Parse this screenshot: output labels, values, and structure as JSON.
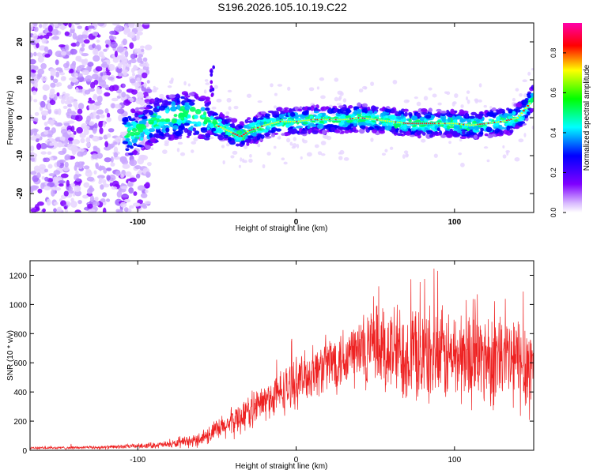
{
  "title": "S196.2026.105.10.19.C22",
  "chart_data": [
    {
      "type": "heatmap",
      "xlabel": "Height of straight line (km)",
      "ylabel": "Frequency (Hz)",
      "xlim": [
        -168,
        150
      ],
      "ylim": [
        -25,
        25
      ],
      "x_ticks": [
        -100,
        0,
        100
      ],
      "x_tick_labels": [
        "-100",
        "0",
        "100"
      ],
      "y_ticks": [
        -20,
        -10,
        0,
        10,
        20
      ],
      "y_tick_labels": [
        "-20",
        "-10",
        "0",
        "10",
        "20"
      ],
      "colorbar": {
        "label": "Normalized spectral amplitude",
        "range": [
          0,
          0.95
        ],
        "ticks": [
          0.0,
          0.2,
          0.4,
          0.6,
          0.8
        ],
        "tick_labels": [
          "0.0",
          "0.2",
          "0.4",
          "0.6",
          "0.8"
        ],
        "colormap": [
          "#ffffff",
          "#7f00ff",
          "#0000ff",
          "#00ffff",
          "#00ff00",
          "#ffff00",
          "#ff0000",
          "#ff00ff"
        ]
      },
      "ridge": {
        "x": [
          -100,
          -90,
          -80,
          -70,
          -60,
          -50,
          -45,
          -40,
          -35,
          -30,
          -20,
          -10,
          0,
          10,
          20,
          30,
          40,
          50,
          60,
          70,
          80,
          90,
          100,
          110,
          120,
          130,
          140,
          150
        ],
        "freq": [
          -4,
          -1,
          0,
          1,
          0,
          -2,
          -3,
          -4,
          -5,
          -3.5,
          -2,
          -1,
          -1,
          -0.5,
          -0.5,
          -0.5,
          0,
          -0.5,
          -1,
          -1.5,
          -1.5,
          -1.5,
          -1.5,
          -2,
          -1.5,
          -1,
          0,
          5
        ]
      }
    },
    {
      "type": "line",
      "xlabel": "Height of straight line (km)",
      "ylabel": "SNR (10 * v/v)",
      "xlim": [
        -168,
        150
      ],
      "ylim": [
        0,
        1300
      ],
      "x_ticks": [
        -100,
        0,
        100
      ],
      "x_tick_labels": [
        "-100",
        "0",
        "100"
      ],
      "y_ticks": [
        0,
        200,
        400,
        600,
        800,
        1000,
        1200
      ],
      "y_tick_labels": [
        "0",
        "200",
        "400",
        "600",
        "800",
        "1000",
        "1200"
      ],
      "color": "#ee2222",
      "envelope": {
        "x": [
          -168,
          -120,
          -100,
          -80,
          -65,
          -55,
          -45,
          -35,
          -25,
          -15,
          -5,
          5,
          15,
          25,
          35,
          45,
          60,
          80,
          100,
          120,
          140,
          150
        ],
        "mean": [
          15,
          20,
          30,
          40,
          60,
          110,
          160,
          230,
          300,
          360,
          430,
          500,
          560,
          620,
          660,
          690,
          680,
          650,
          640,
          640,
          600,
          580
        ],
        "spread": [
          10,
          15,
          20,
          30,
          50,
          80,
          110,
          140,
          150,
          170,
          200,
          200,
          220,
          260,
          300,
          350,
          400,
          400,
          380,
          400,
          420,
          430
        ]
      }
    }
  ]
}
